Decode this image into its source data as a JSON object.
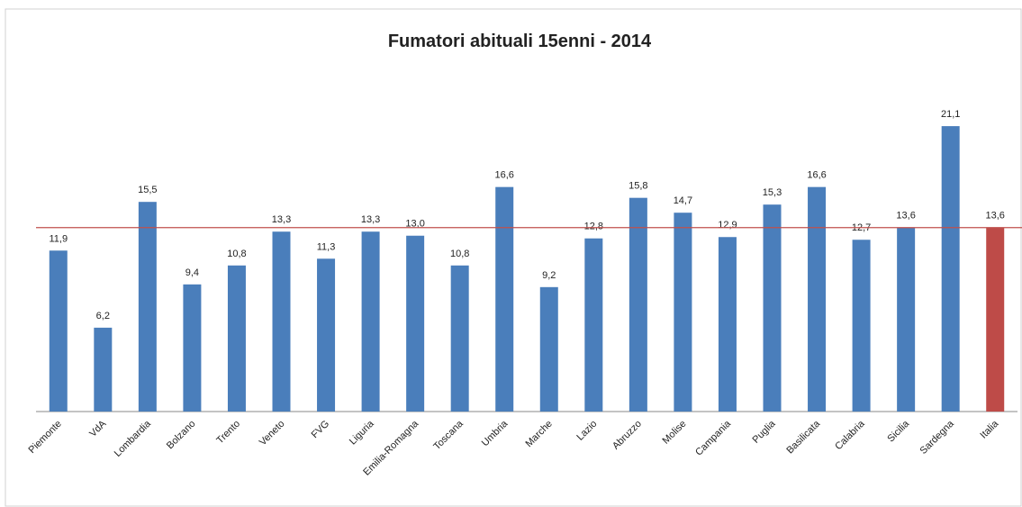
{
  "chart_data": {
    "type": "bar",
    "title": "Fumatori abituali 15enni - 2014",
    "categories": [
      "Piemonte",
      "VdA",
      "Lombardia",
      "Bolzano",
      "Trento",
      "Veneto",
      "FVG",
      "Liguria",
      "Emilia-Romagna",
      "Toscana",
      "Umbria",
      "Marche",
      "Lazio",
      "Abruzzo",
      "Molise",
      "Campania",
      "Puglia",
      "Basilicata",
      "Calabria",
      "Sicilia",
      "Sardegna",
      "Italia"
    ],
    "values": [
      11.9,
      6.2,
      15.5,
      9.4,
      10.8,
      13.3,
      11.3,
      13.3,
      13.0,
      10.8,
      16.6,
      9.2,
      12.8,
      15.8,
      14.7,
      12.9,
      15.3,
      16.6,
      12.7,
      13.6,
      21.1,
      13.6
    ],
    "value_labels": [
      "11,9",
      "6,2",
      "15,5",
      "9,4",
      "10,8",
      "13,3",
      "11,3",
      "13,3",
      "13,0",
      "10,8",
      "16,6",
      "9,2",
      "12,8",
      "15,8",
      "14,7",
      "12,9",
      "15,3",
      "16,6",
      "12,7",
      "13,6",
      "21,1",
      "13,6"
    ],
    "colors": [
      "#4a7ebb",
      "#4a7ebb",
      "#4a7ebb",
      "#4a7ebb",
      "#4a7ebb",
      "#4a7ebb",
      "#4a7ebb",
      "#4a7ebb",
      "#4a7ebb",
      "#4a7ebb",
      "#4a7ebb",
      "#4a7ebb",
      "#4a7ebb",
      "#4a7ebb",
      "#4a7ebb",
      "#4a7ebb",
      "#4a7ebb",
      "#4a7ebb",
      "#4a7ebb",
      "#4a7ebb",
      "#4a7ebb",
      "#be4b48"
    ],
    "reference_line": 13.6,
    "reference_color": "#c0504d",
    "ylim": [
      0,
      25
    ]
  }
}
